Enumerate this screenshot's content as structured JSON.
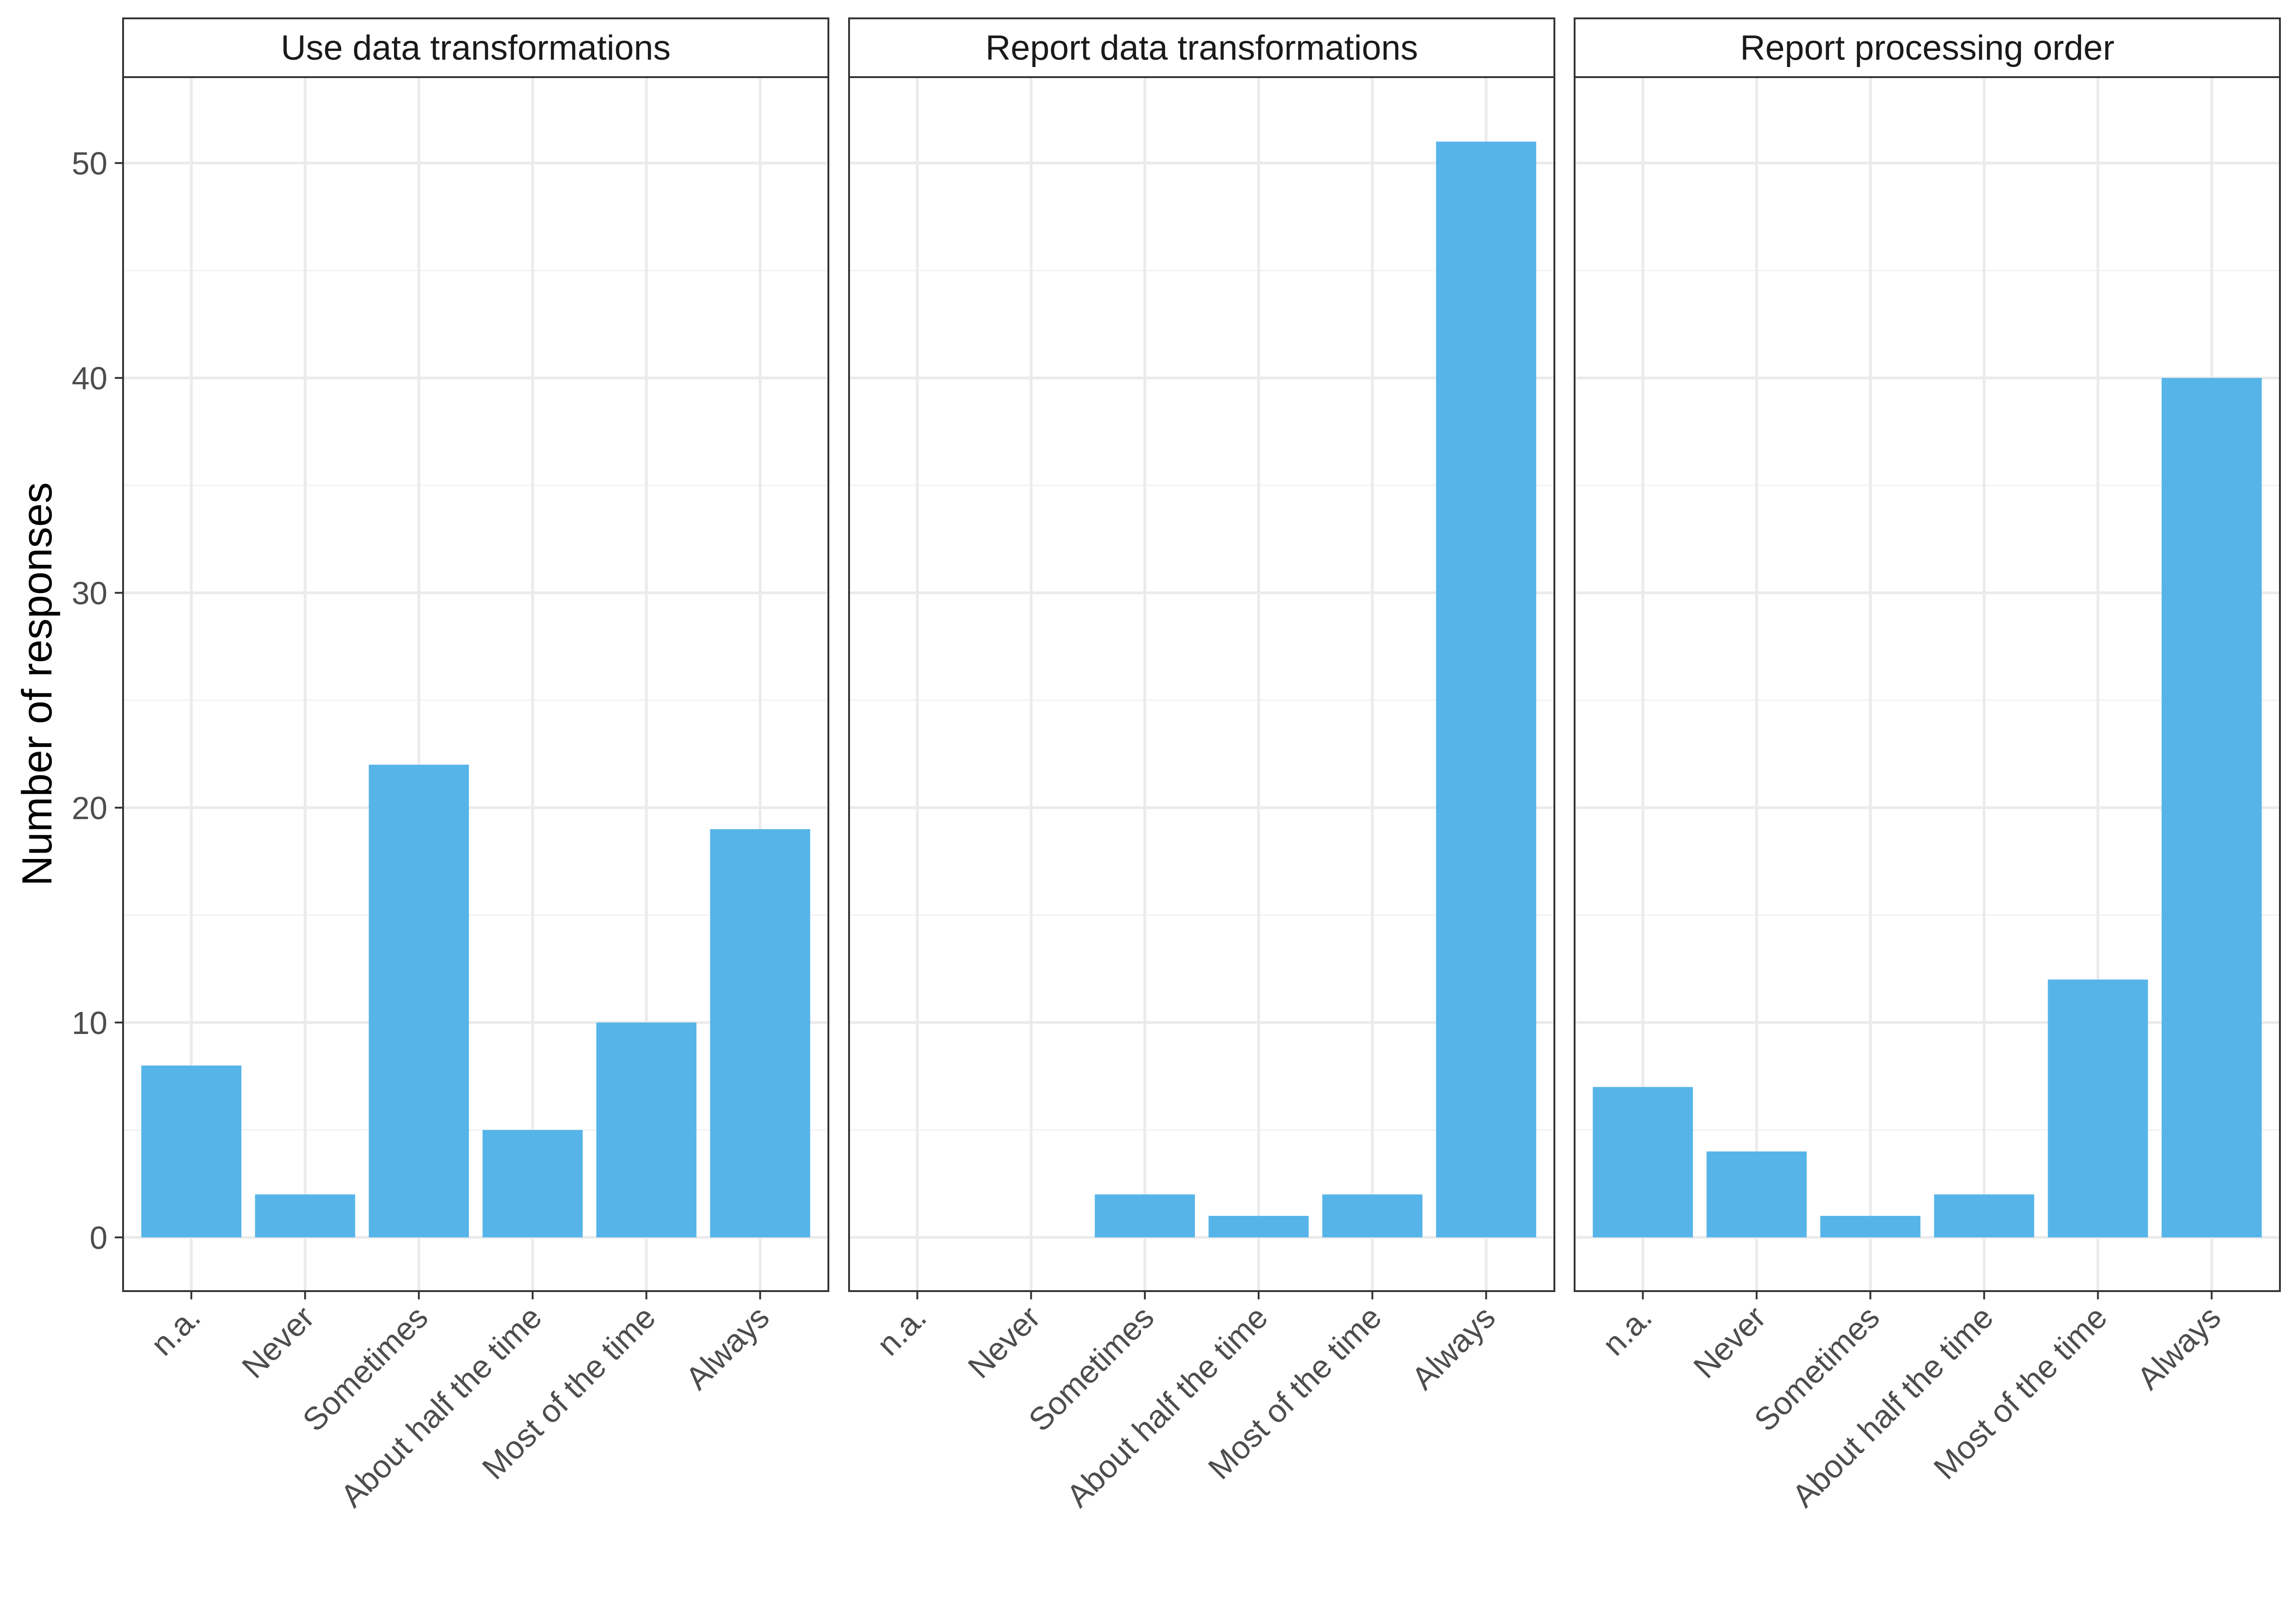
{
  "chart_data": {
    "type": "bar",
    "ylabel": "Number of responses",
    "xlabel": "",
    "ylim": [
      -2.5,
      54
    ],
    "y_ticks": [
      0,
      10,
      20,
      30,
      40,
      50
    ],
    "grid": true,
    "bar_color": "#56B4E9",
    "categories": [
      "n.a.",
      "Never",
      "Sometimes",
      "About half the time",
      "Most of the time",
      "Always"
    ],
    "panels": [
      {
        "title": "Use data transformations",
        "values": [
          8,
          2,
          22,
          5,
          10,
          19
        ]
      },
      {
        "title": "Report data transformations",
        "values": [
          0,
          0,
          2,
          1,
          2,
          51
        ]
      },
      {
        "title": "Report processing order",
        "values": [
          7,
          4,
          1,
          2,
          12,
          40
        ]
      }
    ]
  }
}
